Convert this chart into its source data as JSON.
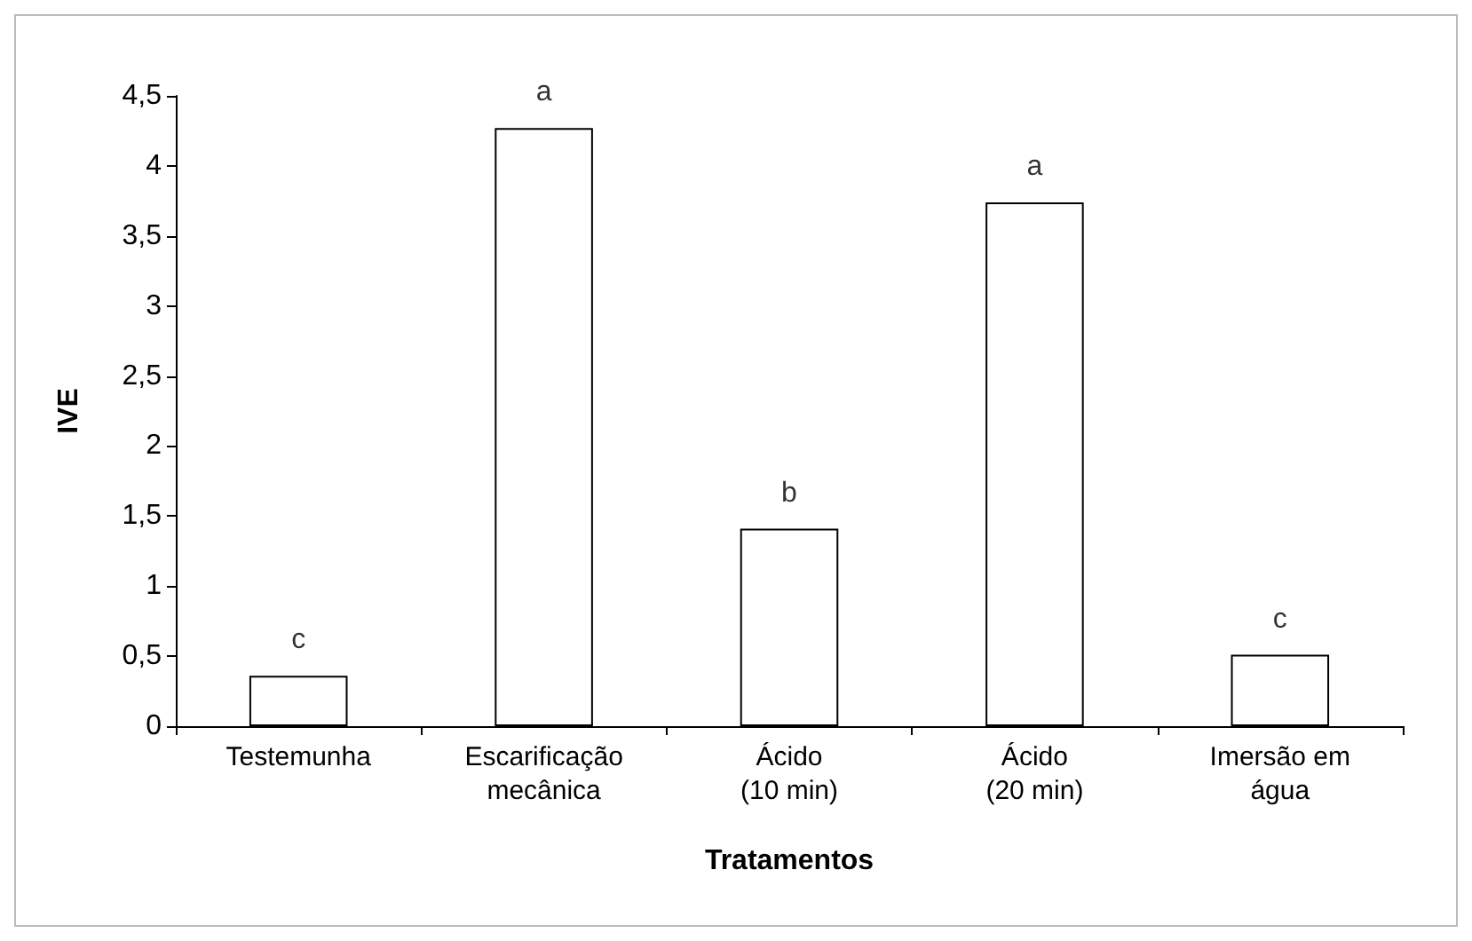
{
  "chart_data": {
    "type": "bar",
    "xlabel": "Tratamentos",
    "ylabel": "IVE",
    "categories": [
      "Testemunha",
      "Escarificação\nmecânica",
      "Ácido\n(10 min)",
      "Ácido\n(20 min)",
      "Imersão em\nágua"
    ],
    "values": [
      0.36,
      4.27,
      1.41,
      3.74,
      0.51
    ],
    "color": "#ffffff",
    "ylim": [
      0,
      4.5
    ],
    "yticks": [
      {
        "value": 0,
        "label": "0"
      },
      {
        "value": 0.5,
        "label": "0,5"
      },
      {
        "value": 1,
        "label": "1"
      },
      {
        "value": 1.5,
        "label": "1,5"
      },
      {
        "value": 2,
        "label": "2"
      },
      {
        "value": 2.5,
        "label": "2,5"
      },
      {
        "value": 3,
        "label": "3"
      },
      {
        "value": 3.5,
        "label": "3,5"
      },
      {
        "value": 4,
        "label": "4"
      },
      {
        "value": 4.5,
        "label": "4,5"
      }
    ],
    "annotations": [
      {
        "text": "c",
        "x": "Testemunha",
        "y": 0.36
      },
      {
        "text": "a",
        "x": "Escarificação\nmecânica",
        "y": 4.27
      },
      {
        "text": "b",
        "x": "Ácido\n(10 min)",
        "y": 1.41
      },
      {
        "text": "a",
        "x": "Ácido\n(20 min)",
        "y": 3.74
      },
      {
        "text": "c",
        "x": "Imersão em\nágua",
        "y": 0.51
      }
    ]
  }
}
